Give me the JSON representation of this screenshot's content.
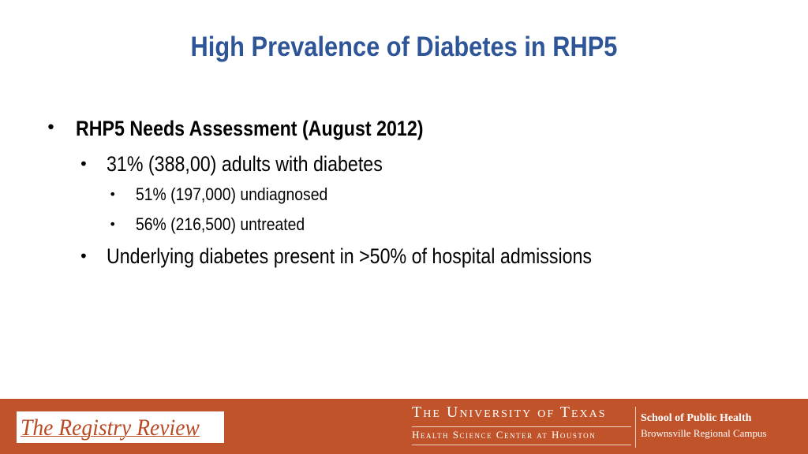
{
  "slide": {
    "title": "High Prevalence of Diabetes in RHP5",
    "bullet_glyph": "•",
    "bullets": [
      {
        "level": 1,
        "text": "RHP5 Needs Assessment (August 2012)"
      },
      {
        "level": 2,
        "text": "31% (388,00) adults with diabetes"
      },
      {
        "level": 3,
        "text": "51% (197,000) undiagnosed"
      },
      {
        "level": 3,
        "text": "56% (216,500) untreated"
      },
      {
        "level": 2,
        "text": "Underlying diabetes present in >50% of hospital admissions"
      }
    ]
  },
  "footer": {
    "background_color": "#c0532a",
    "registry_logo": "The Registry Review",
    "university_line1": "The University of Texas",
    "university_line2": "Health Science Center at Houston",
    "school_name": "School of Public Health",
    "campus_name": "Brownsville Regional Campus"
  },
  "colors": {
    "title": "#2e5597",
    "body_text": "#000000",
    "footer_text": "#ffffff",
    "logo_text": "#b94a24"
  }
}
